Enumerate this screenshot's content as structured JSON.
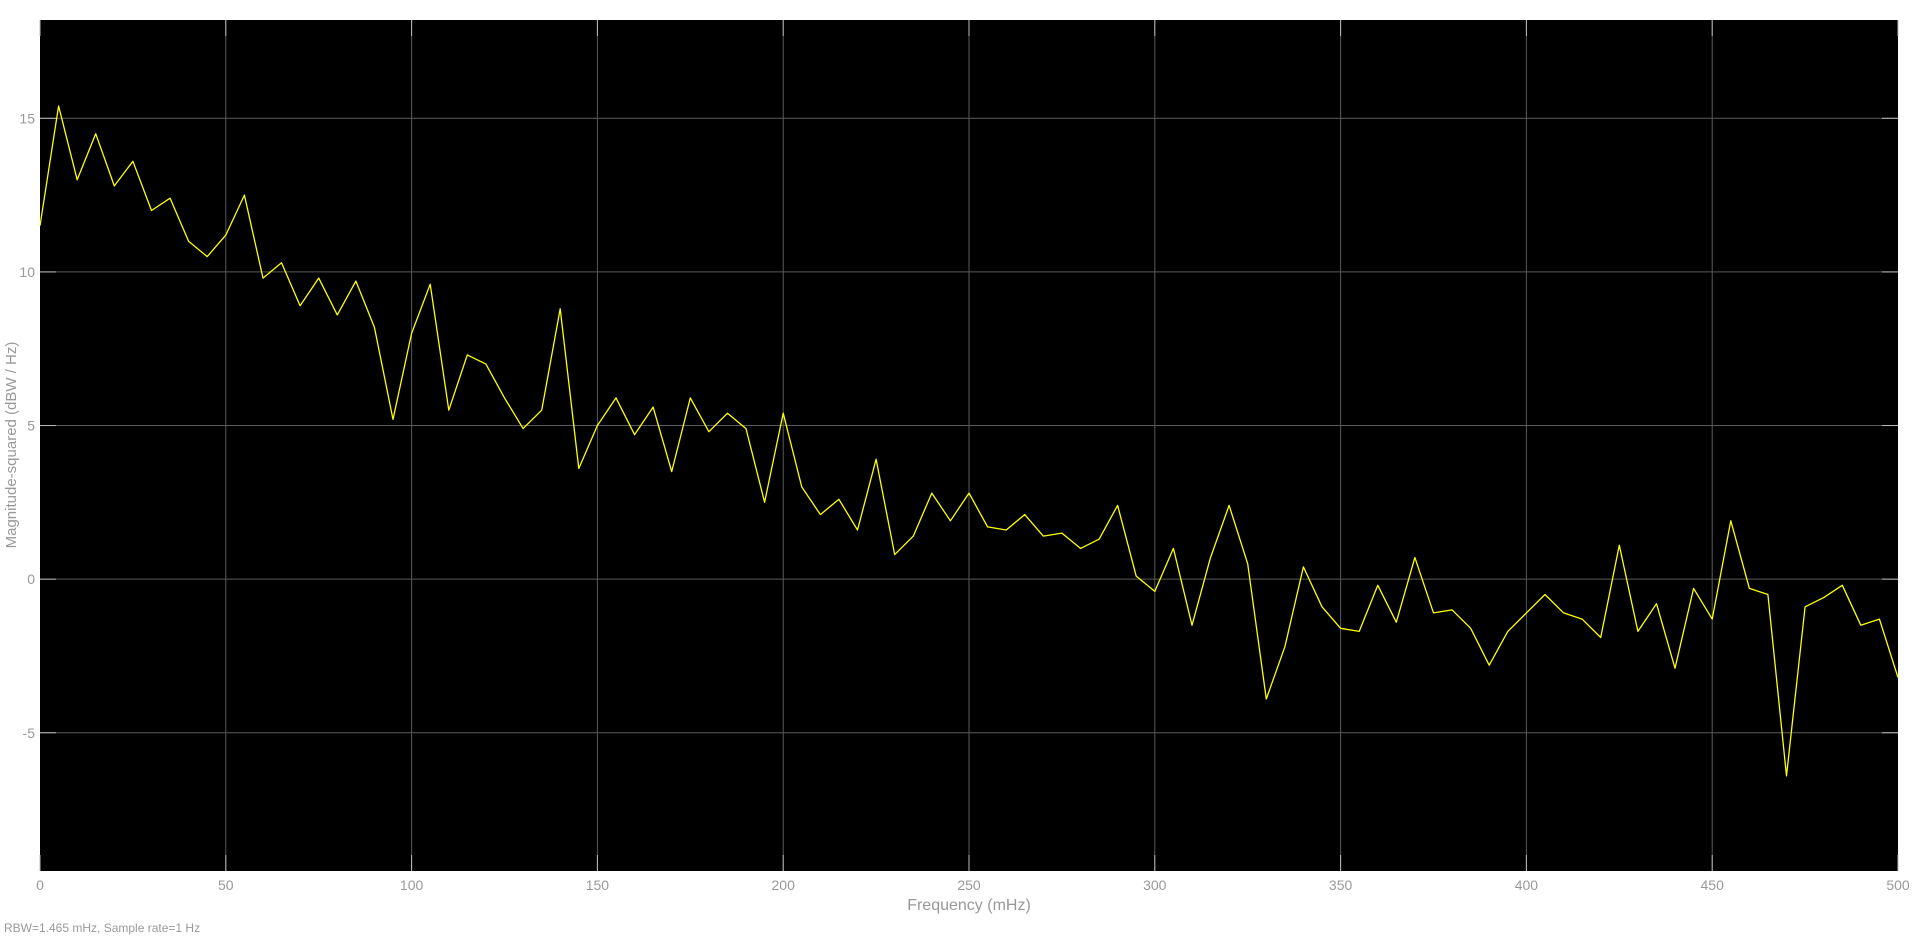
{
  "chart_data": {
    "type": "line",
    "title": "",
    "xlabel": "Frequency (mHz)",
    "ylabel": "Magnitude-squared (dBW / Hz)",
    "footer": "RBW=1.465 mHz, Sample rate=1 Hz",
    "xlim": [
      0,
      500
    ],
    "ylim": [
      -9.5,
      18.2
    ],
    "x_ticks": [
      0,
      50,
      100,
      150,
      200,
      250,
      300,
      350,
      400,
      450,
      500
    ],
    "y_ticks": [
      -5,
      0,
      5,
      10,
      15
    ],
    "grid": true,
    "background_color": "#000000",
    "grid_color": "#5a5a5a",
    "tick_label_color": "#999999",
    "line_color": "#ffff00",
    "series": [
      {
        "x": [
          0,
          5,
          10,
          15,
          20,
          25,
          30,
          35,
          40,
          45,
          50,
          55,
          60,
          65,
          70,
          75,
          80,
          85,
          90,
          95,
          100,
          105,
          110,
          115,
          120,
          125,
          130,
          135,
          140,
          145,
          150,
          155,
          160,
          165,
          170,
          175,
          180,
          185,
          190,
          195,
          200,
          205,
          210,
          215,
          220,
          225,
          230,
          235,
          240,
          245,
          250,
          255,
          260,
          265,
          270,
          275,
          280,
          285,
          290,
          295,
          300,
          305,
          310,
          315,
          320,
          325,
          330,
          335,
          340,
          345,
          350,
          355,
          360,
          365,
          370,
          375,
          380,
          385,
          390,
          395,
          400,
          405,
          410,
          415,
          420,
          425,
          430,
          435,
          440,
          445,
          450,
          455,
          460,
          465,
          470,
          475,
          480,
          485,
          490,
          495,
          500
        ],
        "y": [
          11.5,
          15.4,
          13.0,
          14.5,
          12.8,
          13.6,
          12.0,
          12.4,
          11.0,
          10.5,
          11.2,
          12.5,
          9.8,
          10.3,
          8.9,
          9.8,
          8.6,
          9.7,
          8.2,
          5.2,
          8.0,
          9.6,
          5.5,
          7.3,
          7.0,
          5.9,
          4.9,
          5.5,
          8.8,
          3.6,
          5.0,
          5.9,
          4.7,
          5.6,
          3.5,
          5.9,
          4.8,
          5.4,
          4.9,
          2.5,
          5.4,
          3.0,
          2.1,
          2.6,
          1.6,
          3.9,
          0.8,
          1.4,
          2.8,
          1.9,
          2.8,
          1.7,
          1.6,
          2.1,
          1.4,
          1.5,
          1.0,
          1.3,
          2.4,
          0.1,
          -0.4,
          1.0,
          -1.5,
          0.7,
          2.4,
          0.5,
          -3.9,
          -2.2,
          0.4,
          -0.9,
          -1.6,
          -1.7,
          -0.2,
          -1.4,
          0.7,
          -1.1,
          -1.0,
          -1.6,
          -2.8,
          -1.7,
          -1.1,
          -0.5,
          -1.1,
          -1.3,
          -1.9,
          1.1,
          -1.7,
          -0.8,
          -2.9,
          -0.3,
          -1.3,
          1.9,
          -0.3,
          -0.5,
          -6.4,
          -0.9,
          -0.6,
          -0.2,
          -1.5,
          -1.3,
          -3.2
        ]
      }
    ]
  }
}
